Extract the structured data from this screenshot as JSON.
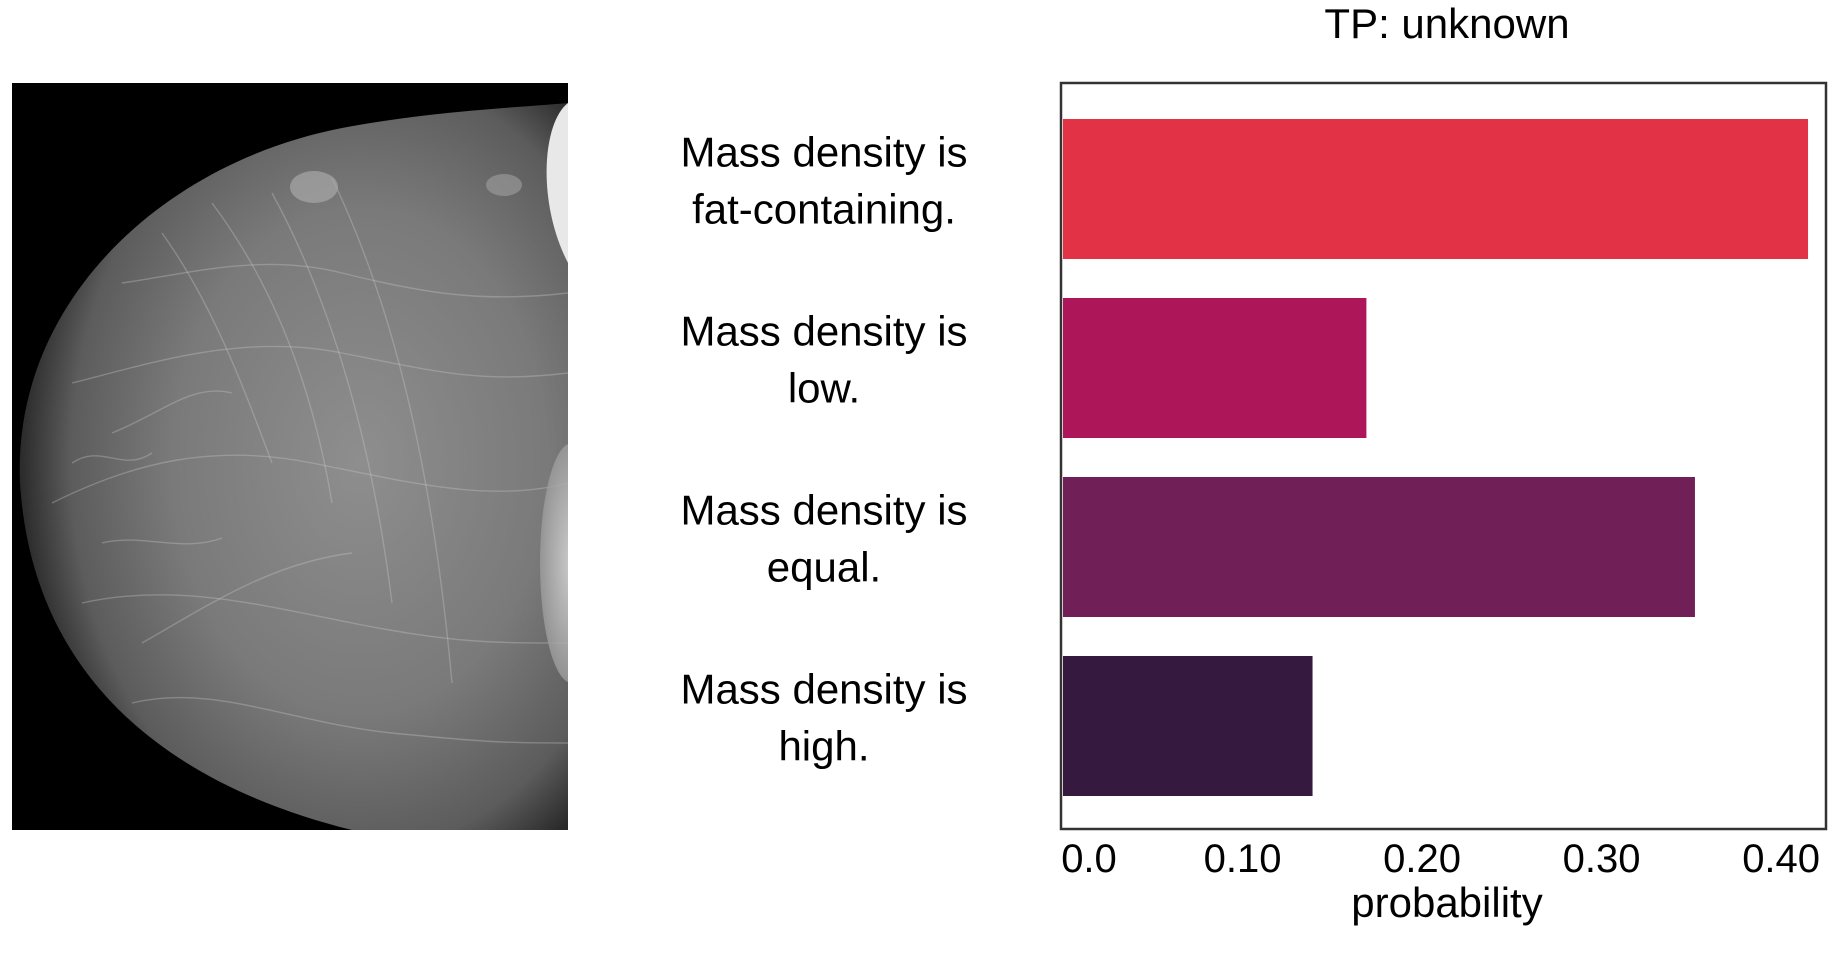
{
  "image": {
    "subject": "mammogram",
    "colors": {
      "background": "#000000",
      "tissue": "#8a8a8a"
    }
  },
  "chart_data": {
    "type": "bar",
    "orientation": "horizontal",
    "title": "TP: unknown",
    "xlabel": "probability",
    "ylabel": "",
    "categories": [
      [
        "Mass density is",
        "fat-containing."
      ],
      [
        "Mass density is",
        "low."
      ],
      [
        "Mass density is",
        "equal."
      ],
      [
        "Mass density is",
        "high."
      ]
    ],
    "values": [
      0.415,
      0.169,
      0.352,
      0.139
    ],
    "colors": [
      "#e13345",
      "#ad1759",
      "#701f57",
      "#35193e"
    ],
    "xlim": [
      0.0,
      0.425
    ],
    "xticks": [
      0.0,
      0.1,
      0.2,
      0.3,
      0.4
    ],
    "xtick_labels": [
      "0.0",
      "0.10",
      "0.20",
      "0.30",
      "0.40"
    ],
    "grid": false,
    "legend": "none"
  }
}
